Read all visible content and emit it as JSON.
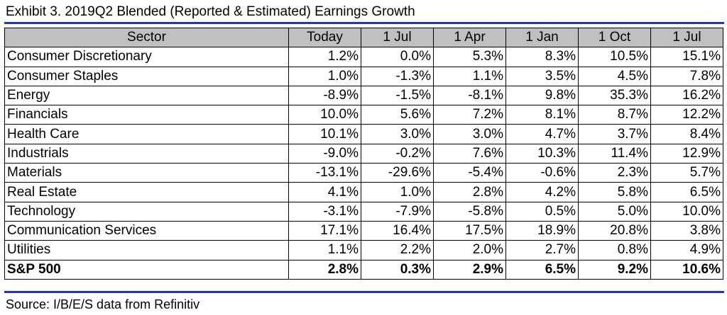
{
  "title": "Exhibit 3.  2019Q2 Blended (Reported & Estimated) Earnings Growth",
  "table": {
    "columns": [
      "Sector",
      "Today",
      "1 Jul",
      "1 Apr",
      "1 Jan",
      "1 Oct",
      "1 Jul"
    ],
    "rows": [
      {
        "sector": "Consumer Discretionary",
        "values": [
          "1.2%",
          "0.0%",
          "5.3%",
          "8.3%",
          "10.5%",
          "15.1%"
        ]
      },
      {
        "sector": "Consumer Staples",
        "values": [
          "1.0%",
          "-1.3%",
          "1.1%",
          "3.5%",
          "4.5%",
          "7.8%"
        ]
      },
      {
        "sector": "Energy",
        "values": [
          "-8.9%",
          "-1.5%",
          "-8.1%",
          "9.8%",
          "35.3%",
          "16.2%"
        ]
      },
      {
        "sector": "Financials",
        "values": [
          "10.0%",
          "5.6%",
          "7.2%",
          "8.1%",
          "8.7%",
          "12.2%"
        ]
      },
      {
        "sector": "Health Care",
        "values": [
          "10.1%",
          "3.0%",
          "3.0%",
          "4.7%",
          "3.7%",
          "8.4%"
        ]
      },
      {
        "sector": "Industrials",
        "values": [
          "-9.0%",
          "-0.2%",
          "7.6%",
          "10.3%",
          "11.4%",
          "12.9%"
        ]
      },
      {
        "sector": "Materials",
        "values": [
          "-13.1%",
          "-29.6%",
          "-5.4%",
          "-0.6%",
          "2.3%",
          "5.7%"
        ]
      },
      {
        "sector": "Real Estate",
        "values": [
          "4.1%",
          "1.0%",
          "2.8%",
          "4.2%",
          "5.8%",
          "6.5%"
        ]
      },
      {
        "sector": "Technology",
        "values": [
          "-3.1%",
          "-7.9%",
          "-5.8%",
          "0.5%",
          "5.0%",
          "10.0%"
        ]
      },
      {
        "sector": "Communication Services",
        "values": [
          "17.1%",
          "16.4%",
          "17.5%",
          "18.9%",
          "20.8%",
          "3.8%"
        ]
      },
      {
        "sector": "Utilities",
        "values": [
          "1.1%",
          "2.2%",
          "2.0%",
          "2.7%",
          "0.8%",
          "4.9%"
        ]
      }
    ],
    "total": {
      "sector": "S&P 500",
      "values": [
        "2.8%",
        "0.3%",
        "2.9%",
        "6.5%",
        "9.2%",
        "10.6%"
      ]
    }
  },
  "source": "Source: I/B/E/S data from Refinitiv",
  "colors": {
    "rule": "#2233cc",
    "header_bg": "#c0c0c0"
  }
}
